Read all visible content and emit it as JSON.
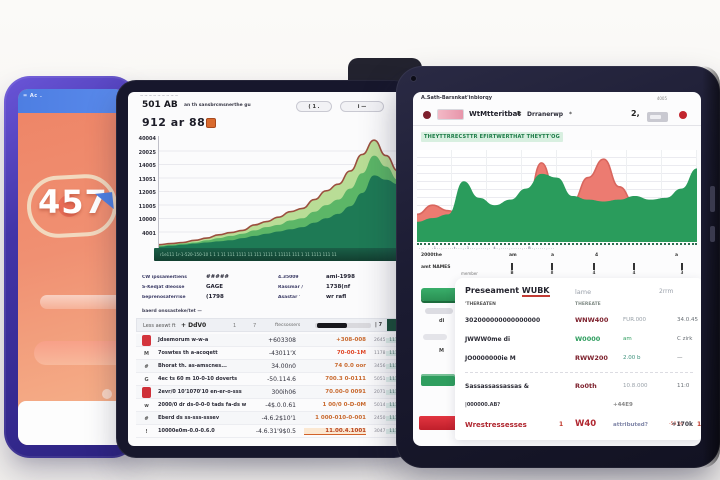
{
  "left_tablet": {
    "statusbar_text": "= Ac .",
    "hero_number": "457",
    "accent_blue": "#4f80e2",
    "screen_gradient": [
      "#ee8466",
      "#f6b58d"
    ],
    "frame_color": "#4335a8"
  },
  "middle_tablet": {
    "speaker": "~~~~~~~~~",
    "header": {
      "title": "501 AB",
      "small": "an th sansbrcmsnerthe gu",
      "toggle1": "( 1 .",
      "toggle2": "i  —"
    },
    "section_title": "912 ar 888",
    "y_ticks": [
      "40004",
      "20025",
      "14005",
      "13051",
      "12005",
      "11005",
      "10000",
      "4001"
    ],
    "x_strip_text": "r1e111 1r-1-520-150-10 1 1 1 11 111 1111 11 111 1111 1 11111 111 1 11 1111 111 11",
    "stats_left": [
      {
        "label": "CW ipssameitiens",
        "value": "#####"
      },
      {
        "label": "S-Kedjat dleosse",
        "value": "GAGE"
      },
      {
        "label": "beprenosaferrise",
        "value": "(1798"
      }
    ],
    "stats_right": [
      {
        "label": "4.35009",
        "value": "ami-1998"
      },
      {
        "label": "Rassmar /",
        "value": "1738(nf"
      },
      {
        "label": "Asastar '",
        "value": "wr rafl"
      }
    ],
    "link_text": "baerd onssasteke/tet —",
    "table": {
      "header": {
        "c1": "Less aeswt ft",
        "c2": "+ DdV0",
        "c3": "1",
        "c4": "7",
        "c5": "ftecsossers",
        "slider_value": "| 7"
      },
      "rows": [
        {
          "icon": "",
          "icon_bg": "#d3343c",
          "name": "Jdsemorum w-w-a",
          "v1": "+603308",
          "v2": "+308-008",
          "v2c": "#c96a2f",
          "v3": "2645",
          "v4": "111"
        },
        {
          "icon": "M",
          "name": "7oswtes th a-acoqett",
          "v1": "-43011'X",
          "v2": "70-00-1M",
          "v2c": "#e0492a",
          "v3": "1178",
          "v4": "111"
        },
        {
          "icon": "#",
          "name": "Bhorat th. as-amscnes...",
          "v1": "34.00n0",
          "v2": "74 0.0 oor",
          "v2c": "#c96a2f",
          "v3": "3456",
          "v4": "111"
        },
        {
          "icon": "G",
          "name": "4ec ts 60 m 10-0-10 doverts",
          "v1": "-50.114.6",
          "v2": "700.3 0-0111",
          "v2c": "#c96a2f",
          "v3": "5051",
          "v4": "111"
        },
        {
          "icon": "",
          "icon_bg": "#cf3038",
          "name": "2evr/0 10'1070'10 en-er-o-sss",
          "v1": "300ih06",
          "v2": "70.00-0 0091",
          "v2c": "#c96a2f",
          "v3": "2071",
          "v4": "111"
        },
        {
          "icon": "w",
          "name": "2000/0 dr ds-0-0-0 tads fa-ds w",
          "v1": "-4$.0.0.61",
          "v2": "1 00/0 0-D-0M",
          "v2c": "#c96a2f",
          "v3": "5014",
          "v4": "111"
        },
        {
          "icon": "#",
          "name": "Eberd ds ss-sss-sssev",
          "v1": "-4.6.2$10'1",
          "v2": "1 000-010-0-001",
          "v2c": "#c96a2f",
          "v3": "2450",
          "v4": "111"
        },
        {
          "icon": "!",
          "name": "10000e0m-0.0-0.6.0",
          "v1": "-4.6.31'9$0.5",
          "v2": "11.00.4.1001",
          "v2c": "#b8431f",
          "v2_bg": "#fbe8d2",
          "v2_bd": "1px solid #d2622a",
          "v3": "3047",
          "v4": "111"
        }
      ]
    }
  },
  "right_tablet": {
    "topbar": {
      "small_text": "A.Sath-Barsnkat'inbiorqy",
      "right_text": "4005"
    },
    "toolbar": {
      "title": "WtMtteritbat",
      "sep": "It",
      "menu": "Drranerwp",
      "glyph": "*",
      "right_glyph": "2,"
    },
    "highlight_label": "THEYTTRRECSTTR EFIRTWERTHAT THEYTT'OG",
    "undertick_text": ".,. , .1..,.....t...,.1...,....,. 4.,....,.....,..B.,.....,...",
    "axis_row1": [
      "2000the",
      "am",
      "a",
      "4",
      "a"
    ],
    "axis_row2_label": "amt NAMES",
    "axis_ticks": [
      "B",
      "8",
      "4",
      "4",
      "3"
    ],
    "card": {
      "tab": "member",
      "header": {
        "title_a": "Preseament ",
        "title_b": "WUBK",
        "c2": "lame",
        "c3": "2rrm"
      },
      "subrow": {
        "left": "'THEREATEN",
        "right": "THEREATE"
      },
      "rows": [
        {
          "name": "302000000000000000",
          "v1": "WNW400",
          "v1c": "#7e222e",
          "v2": "FUR.000",
          "v3": "34.0.45"
        },
        {
          "name": "JWWW0me  di",
          "v1": "W0000",
          "v1c": "#2f9e5f",
          "v2": "am",
          "v2c": "#2f9e5f",
          "v3": "C zirk"
        },
        {
          "name": "JO0000000ie  M",
          "v1": "RWW200",
          "v1c": "#7e222e",
          "v2": "2.00 b",
          "v2c": "#3a8f7a",
          "v3": "—"
        }
      ],
      "row_d": {
        "name": "Sassassassassas &",
        "v1": "Ro0th",
        "v1c": "#7e222e",
        "v2": "10.8.000",
        "v3": "11:0"
      },
      "gap_row": {
        "left": "|000000.AB?",
        "right": "+44E9"
      },
      "last_row": {
        "name": "Wrestressesses",
        "flag": "1",
        "v1": "W40",
        "v2": "attributed?",
        "v3": "-50.00",
        "flag2": "1",
        "v4": "+170k"
      }
    }
  },
  "chart_data": [
    {
      "id": "middle_growth_chart",
      "type": "area",
      "target": "chart-middle",
      "title": "912 ar 888",
      "ylabel_ticks": [
        "40004",
        "20025",
        "14005",
        "13051",
        "12005",
        "11005",
        "10000",
        "4001"
      ],
      "ylim": [
        0,
        100
      ],
      "grid": true,
      "legend": "none",
      "series": [
        {
          "name": "outer-light-green",
          "fill": "#b9dd96",
          "stroke": "#9b4f3e",
          "values": [
            3,
            4,
            5,
            7,
            9,
            12,
            14,
            16,
            21,
            24,
            28,
            33,
            36,
            44,
            52,
            58,
            70,
            85,
            98,
            84,
            70
          ]
        },
        {
          "name": "mid-green",
          "fill": "#5cb667",
          "values": [
            2,
            3,
            4,
            5,
            7,
            9,
            11,
            13,
            16,
            19,
            21,
            25,
            27,
            33,
            39,
            44,
            54,
            68,
            84,
            74,
            62
          ]
        },
        {
          "name": "dark-green",
          "fill": "#1e7a55",
          "values": [
            1,
            2,
            3,
            4,
            5,
            6,
            7,
            9,
            11,
            13,
            15,
            17,
            19,
            23,
            27,
            31,
            38,
            50,
            66,
            62,
            58
          ]
        }
      ]
    },
    {
      "id": "right_dual_area",
      "type": "area",
      "target": "chart-right",
      "ylim": [
        0,
        100
      ],
      "grid": true,
      "legend": "none",
      "series": [
        {
          "name": "losses-red",
          "fill": "#ec7b71",
          "stroke": "#d8665e",
          "values": [
            30,
            40,
            34,
            26,
            28,
            34,
            44,
            36,
            86,
            48,
            44,
            70,
            90,
            60,
            42,
            38,
            40,
            52,
            76
          ]
        },
        {
          "name": "gains-green",
          "fill": "#2a9c5c",
          "values": [
            22,
            26,
            30,
            66,
            48,
            40,
            46,
            58,
            74,
            70,
            50,
            46,
            44,
            46,
            50,
            46,
            48,
            58,
            80
          ]
        }
      ]
    }
  ]
}
